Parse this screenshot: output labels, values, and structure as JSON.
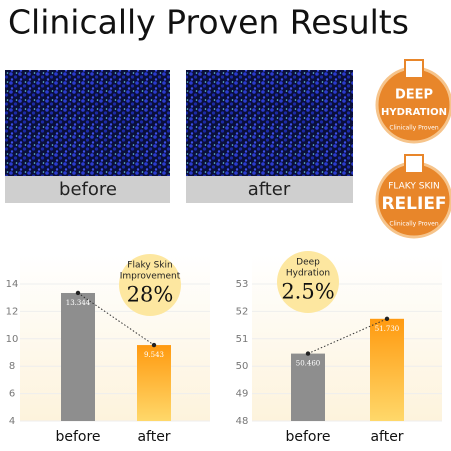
{
  "header": {
    "title": "Clinically Proven Results"
  },
  "images": [
    {
      "label": "before"
    },
    {
      "label": "after"
    }
  ],
  "badges": [
    {
      "lines": [
        "DEEP",
        "HYDRATION"
      ],
      "note": "Clinically Proven"
    },
    {
      "lines": [
        "FLAKY SKIN",
        "RELIEF"
      ],
      "note": "Clinically Proven"
    }
  ],
  "chart_data": [
    {
      "type": "bar",
      "categories": [
        "before",
        "after"
      ],
      "values": [
        13.344,
        9.543
      ],
      "ylim": [
        4,
        14
      ],
      "yticks": [
        4,
        6,
        8,
        10,
        12,
        14
      ],
      "colors": [
        "#8e8e8e",
        "#f5a11c"
      ],
      "annotation": {
        "lines": [
          "Flaky Skin",
          "Improvement"
        ],
        "value": "28%"
      }
    },
    {
      "type": "bar",
      "categories": [
        "before",
        "after"
      ],
      "values": [
        50.46,
        51.73
      ],
      "value_labels": [
        "50.460",
        "51.730"
      ],
      "ylim": [
        48,
        53
      ],
      "yticks": [
        48,
        49,
        50,
        51,
        52,
        53
      ],
      "colors": [
        "#8e8e8e",
        "#f5a11c"
      ],
      "annotation": {
        "lines": [
          "Deep",
          "Hydration"
        ],
        "value": "2.5%"
      }
    }
  ]
}
